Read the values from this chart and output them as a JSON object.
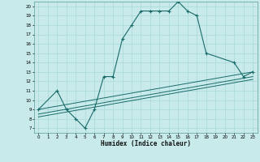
{
  "xlabel": "Humidex (Indice chaleur)",
  "bg_color": "#c8eaea",
  "grid_color": "#a8d8d8",
  "line_color": "#1a6b6b",
  "xlim": [
    -0.5,
    23.5
  ],
  "ylim": [
    6.5,
    20.5
  ],
  "xticks": [
    0,
    1,
    2,
    3,
    4,
    5,
    6,
    7,
    8,
    9,
    10,
    11,
    12,
    13,
    14,
    15,
    16,
    17,
    18,
    19,
    20,
    21,
    22,
    23
  ],
  "yticks": [
    7,
    8,
    9,
    10,
    11,
    12,
    13,
    14,
    15,
    16,
    17,
    18,
    19,
    20
  ],
  "main_x": [
    0,
    2,
    3,
    4,
    5,
    6,
    7,
    8,
    9,
    10,
    11,
    12,
    13,
    14,
    15,
    16,
    17,
    18,
    21,
    22,
    23
  ],
  "main_y": [
    9,
    11,
    9,
    8,
    7,
    9,
    12.5,
    12.5,
    16.5,
    18,
    19.5,
    19.5,
    19.5,
    19.5,
    20.5,
    19.5,
    19,
    15,
    14,
    12.5,
    13
  ],
  "trend1_x": [
    0,
    23
  ],
  "trend1_y": [
    9.0,
    13.0
  ],
  "trend2_x": [
    0,
    23
  ],
  "trend2_y": [
    8.5,
    12.5
  ],
  "trend3_x": [
    0,
    23
  ],
  "trend3_y": [
    8.2,
    12.2
  ]
}
